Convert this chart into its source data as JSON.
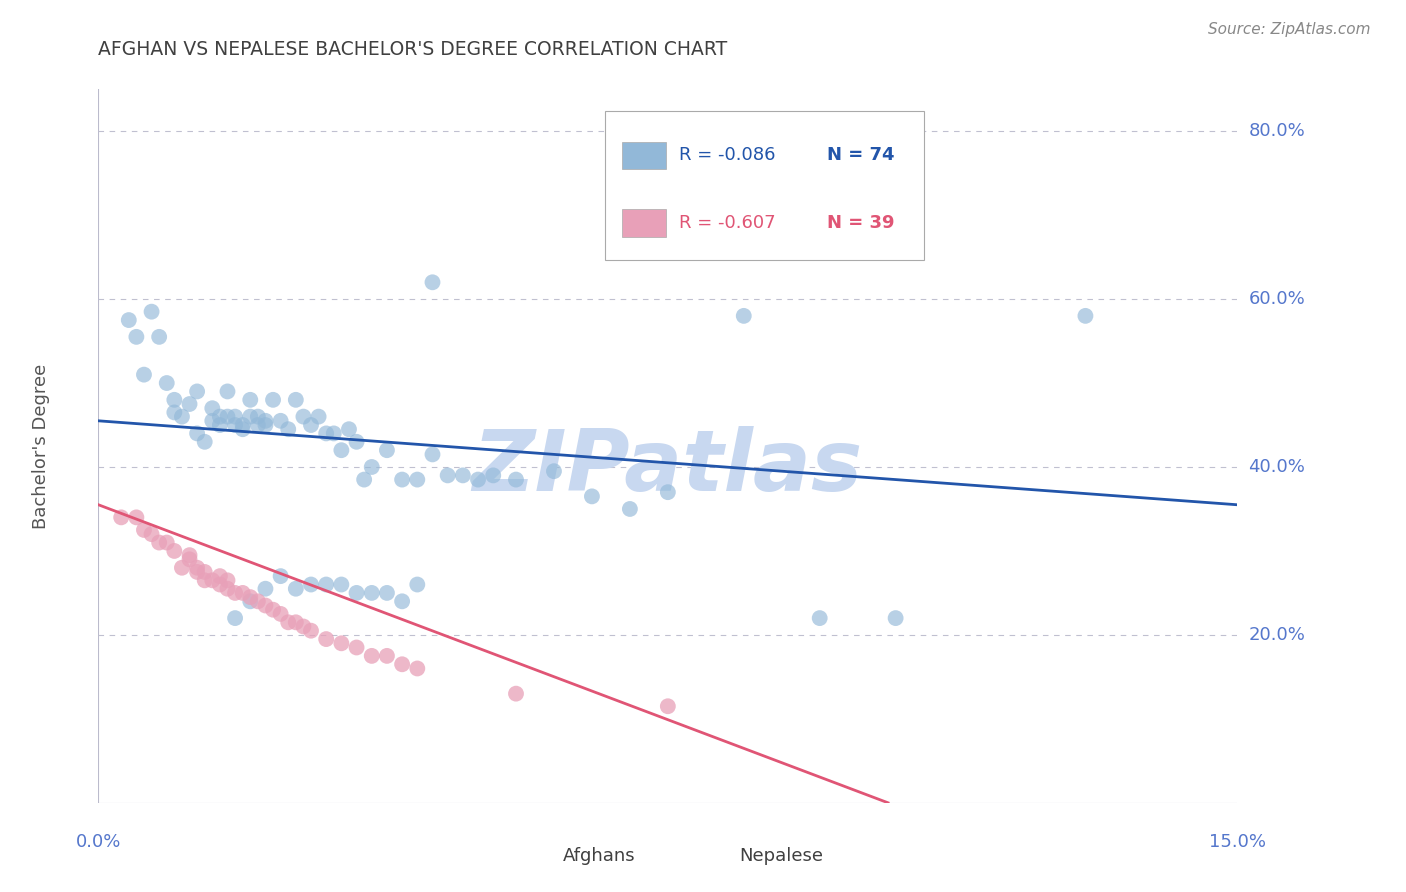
{
  "title": "AFGHAN VS NEPALESE BACHELOR'S DEGREE CORRELATION CHART",
  "source": "Source: ZipAtlas.com",
  "ylabel": "Bachelor's Degree",
  "watermark": "ZIPatlas",
  "legend_r_entries": [
    {
      "label_r": "R = -0.086",
      "label_n": "N = 74",
      "color": "#a8c8e8"
    },
    {
      "label_r": "R = -0.607",
      "label_n": "N = 39",
      "color": "#f0b0c0"
    }
  ],
  "legend_labels": [
    "Afghans",
    "Nepalese"
  ],
  "xmin": 0.0,
  "xmax": 0.15,
  "ymin": 0.0,
  "ymax": 0.85,
  "ytick_vals": [
    0.2,
    0.4,
    0.6,
    0.8
  ],
  "ytick_labels": [
    "20.0%",
    "40.0%",
    "60.0%",
    "80.0%"
  ],
  "blue_scatter_x": [
    0.004,
    0.005,
    0.006,
    0.007,
    0.008,
    0.009,
    0.01,
    0.01,
    0.011,
    0.012,
    0.013,
    0.013,
    0.014,
    0.015,
    0.015,
    0.016,
    0.016,
    0.017,
    0.017,
    0.018,
    0.018,
    0.019,
    0.019,
    0.02,
    0.02,
    0.021,
    0.021,
    0.022,
    0.022,
    0.023,
    0.024,
    0.025,
    0.026,
    0.027,
    0.028,
    0.029,
    0.03,
    0.031,
    0.032,
    0.033,
    0.034,
    0.035,
    0.036,
    0.038,
    0.04,
    0.042,
    0.044,
    0.046,
    0.048,
    0.05,
    0.052,
    0.055,
    0.06,
    0.065,
    0.07,
    0.075,
    0.085,
    0.095,
    0.105,
    0.13,
    0.018,
    0.02,
    0.022,
    0.024,
    0.026,
    0.028,
    0.03,
    0.032,
    0.034,
    0.036,
    0.038,
    0.04,
    0.042,
    0.044
  ],
  "blue_scatter_y": [
    0.575,
    0.555,
    0.51,
    0.585,
    0.555,
    0.5,
    0.465,
    0.48,
    0.46,
    0.475,
    0.44,
    0.49,
    0.43,
    0.455,
    0.47,
    0.45,
    0.46,
    0.46,
    0.49,
    0.45,
    0.46,
    0.45,
    0.445,
    0.46,
    0.48,
    0.46,
    0.45,
    0.45,
    0.455,
    0.48,
    0.455,
    0.445,
    0.48,
    0.46,
    0.45,
    0.46,
    0.44,
    0.44,
    0.42,
    0.445,
    0.43,
    0.385,
    0.4,
    0.42,
    0.385,
    0.385,
    0.415,
    0.39,
    0.39,
    0.385,
    0.39,
    0.385,
    0.395,
    0.365,
    0.35,
    0.37,
    0.58,
    0.22,
    0.22,
    0.58,
    0.22,
    0.24,
    0.255,
    0.27,
    0.255,
    0.26,
    0.26,
    0.26,
    0.25,
    0.25,
    0.25,
    0.24,
    0.26,
    0.62
  ],
  "pink_scatter_x": [
    0.003,
    0.005,
    0.006,
    0.007,
    0.008,
    0.009,
    0.01,
    0.011,
    0.012,
    0.012,
    0.013,
    0.013,
    0.014,
    0.014,
    0.015,
    0.016,
    0.016,
    0.017,
    0.017,
    0.018,
    0.019,
    0.02,
    0.021,
    0.022,
    0.023,
    0.024,
    0.025,
    0.026,
    0.027,
    0.028,
    0.03,
    0.032,
    0.034,
    0.036,
    0.038,
    0.04,
    0.042,
    0.055,
    0.075
  ],
  "pink_scatter_y": [
    0.34,
    0.34,
    0.325,
    0.32,
    0.31,
    0.31,
    0.3,
    0.28,
    0.29,
    0.295,
    0.275,
    0.28,
    0.265,
    0.275,
    0.265,
    0.26,
    0.27,
    0.255,
    0.265,
    0.25,
    0.25,
    0.245,
    0.24,
    0.235,
    0.23,
    0.225,
    0.215,
    0.215,
    0.21,
    0.205,
    0.195,
    0.19,
    0.185,
    0.175,
    0.175,
    0.165,
    0.16,
    0.13,
    0.115
  ],
  "blue_line_x": [
    0.0,
    0.15
  ],
  "blue_line_y": [
    0.455,
    0.355
  ],
  "pink_line_x": [
    0.0,
    0.104
  ],
  "pink_line_y": [
    0.355,
    0.0
  ],
  "blue_color": "#92b8d8",
  "pink_color": "#e8a0b8",
  "blue_line_color": "#2255aa",
  "pink_line_color": "#e05575",
  "title_color": "#404040",
  "axis_label_color": "#5577cc",
  "grid_color": "#c0c0d0",
  "watermark_color": "#c8d8f0",
  "bg_color": "#ffffff",
  "source_color": "#888888"
}
